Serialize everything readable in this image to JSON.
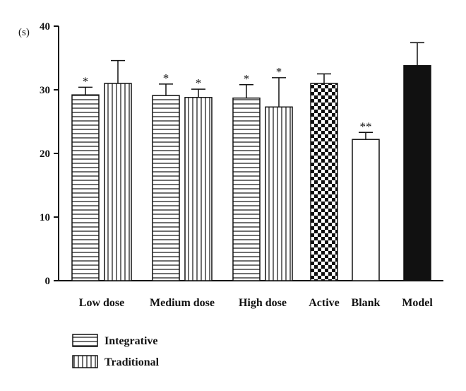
{
  "chart_data": {
    "type": "bar",
    "ylabel": "(s)",
    "ylim": [
      0,
      40
    ],
    "yticks": [
      "0",
      "10",
      "20",
      "30",
      "40"
    ],
    "grid": false,
    "legend_position": "bottom-left",
    "groups": [
      {
        "label": "Low dose",
        "bars": [
          {
            "series": "Integrative",
            "value": 29.2,
            "error": 1.2,
            "annotation": "*",
            "pattern": "horizontal"
          },
          {
            "series": "Traditional",
            "value": 31.0,
            "error": 3.6,
            "annotation": "",
            "pattern": "vertical"
          }
        ]
      },
      {
        "label": "Medium dose",
        "bars": [
          {
            "series": "Integrative",
            "value": 29.1,
            "error": 1.8,
            "annotation": "*",
            "pattern": "horizontal"
          },
          {
            "series": "Traditional",
            "value": 28.8,
            "error": 1.3,
            "annotation": "*",
            "pattern": "vertical"
          }
        ]
      },
      {
        "label": "High dose",
        "bars": [
          {
            "series": "Integrative",
            "value": 28.7,
            "error": 2.1,
            "annotation": "*",
            "pattern": "horizontal"
          },
          {
            "series": "Traditional",
            "value": 27.3,
            "error": 4.6,
            "annotation": "*",
            "pattern": "vertical"
          }
        ]
      },
      {
        "label": "Active",
        "bars": [
          {
            "series": "",
            "value": 31.0,
            "error": 1.5,
            "annotation": "",
            "pattern": "checker"
          }
        ]
      },
      {
        "label": "Blank",
        "bars": [
          {
            "series": "",
            "value": 22.2,
            "error": 1.1,
            "annotation": "**",
            "pattern": "white"
          }
        ]
      },
      {
        "label": "Model",
        "bars": [
          {
            "series": "",
            "value": 33.8,
            "error": 3.6,
            "annotation": "",
            "pattern": "black"
          }
        ]
      }
    ],
    "legend": [
      {
        "label": "Integrative",
        "pattern": "horizontal"
      },
      {
        "label": "Traditional",
        "pattern": "vertical"
      }
    ],
    "colors": {
      "ink": "#111111",
      "fill": "#ffffff"
    }
  }
}
